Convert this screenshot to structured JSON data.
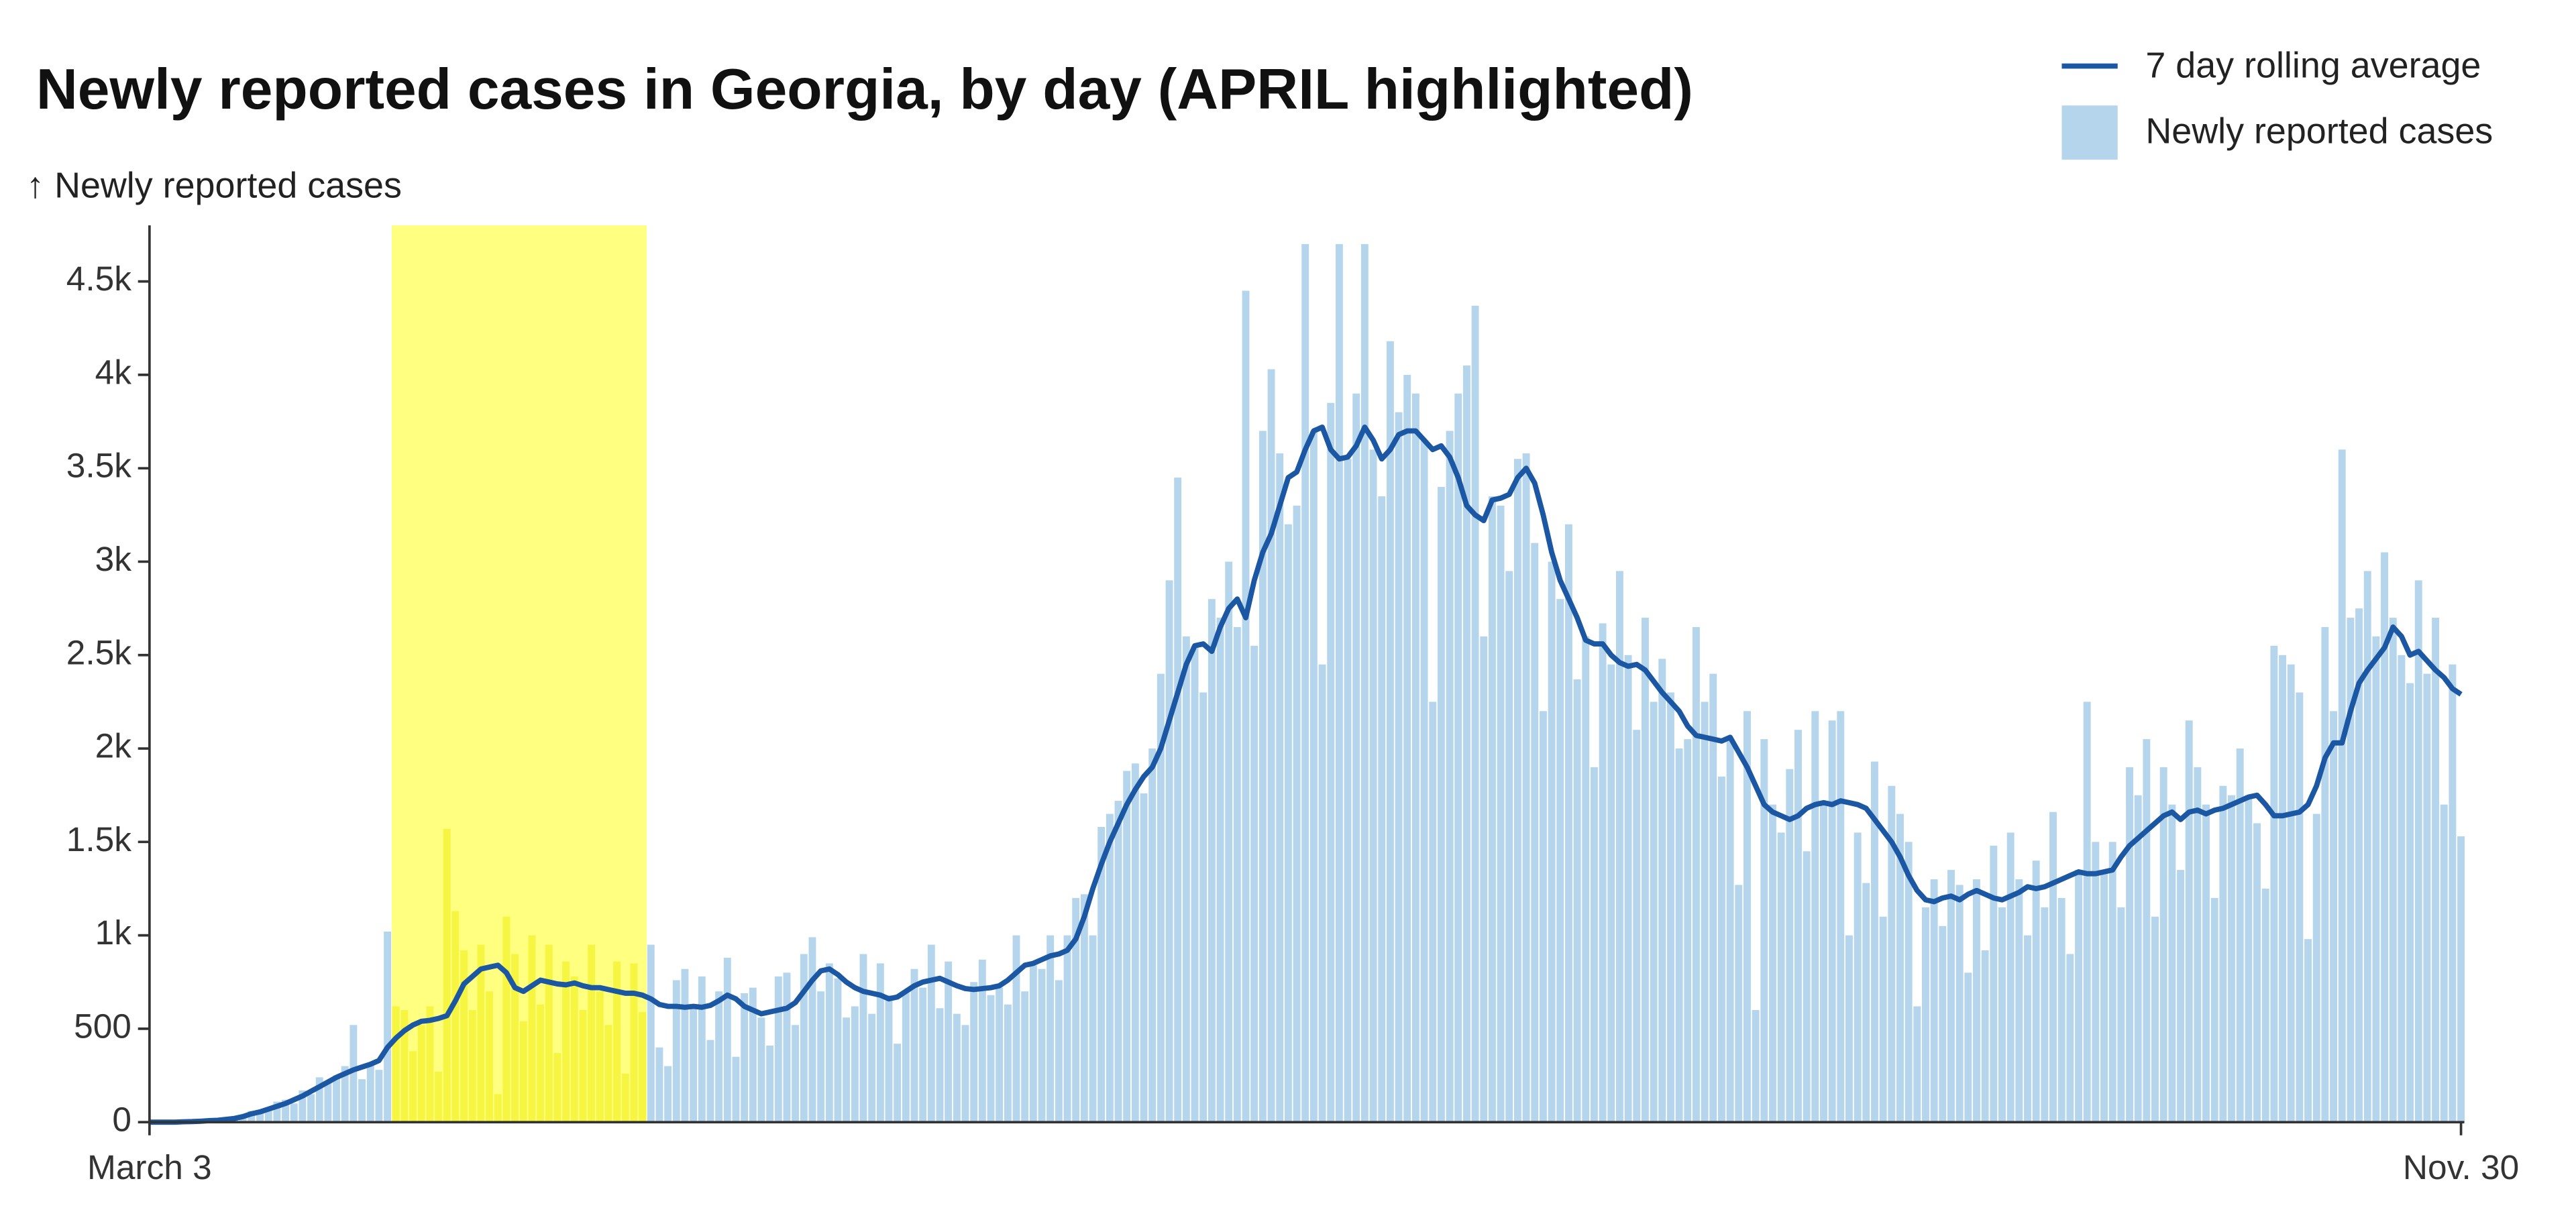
{
  "chart_data": {
    "type": "bar",
    "title": "Newly reported cases in Georgia, by day (APRIL highlighted)",
    "y_label": "↑ Newly reported cases",
    "categories": [
      "March 3",
      null,
      null,
      null,
      null,
      null,
      null,
      null,
      null,
      null,
      null,
      null,
      null,
      null,
      null,
      null,
      null,
      null,
      null,
      null,
      null,
      null,
      null,
      null,
      null,
      null,
      null,
      null,
      null,
      null,
      null,
      null,
      null,
      null,
      null,
      null,
      null,
      null,
      null,
      null,
      null,
      null,
      null,
      null,
      null,
      null,
      null,
      null,
      null,
      null,
      null,
      null,
      null,
      null,
      null,
      null,
      null,
      null,
      null,
      null,
      null,
      null,
      null,
      null,
      null,
      null,
      null,
      null,
      null,
      null,
      null,
      null,
      null,
      null,
      null,
      null,
      null,
      null,
      null,
      null,
      null,
      null,
      null,
      null,
      null,
      null,
      null,
      null,
      null,
      null,
      null,
      null,
      null,
      null,
      null,
      null,
      null,
      null,
      null,
      null,
      null,
      null,
      null,
      null,
      null,
      null,
      null,
      null,
      null,
      null,
      null,
      null,
      null,
      null,
      null,
      null,
      null,
      null,
      null,
      null,
      null,
      null,
      null,
      null,
      null,
      null,
      null,
      null,
      null,
      null,
      null,
      null,
      null,
      null,
      null,
      null,
      null,
      null,
      null,
      null,
      null,
      null,
      null,
      null,
      null,
      null,
      null,
      null,
      null,
      null,
      null,
      null,
      null,
      null,
      null,
      null,
      null,
      null,
      null,
      null,
      null,
      null,
      null,
      null,
      null,
      null,
      null,
      null,
      null,
      null,
      null,
      null,
      null,
      null,
      null,
      null,
      null,
      null,
      null,
      null,
      null,
      null,
      null,
      null,
      null,
      null,
      null,
      null,
      null,
      null,
      null,
      null,
      null,
      null,
      null,
      null,
      null,
      null,
      null,
      null,
      null,
      null,
      null,
      null,
      null,
      null,
      null,
      null,
      null,
      null,
      null,
      null,
      null,
      null,
      null,
      null,
      null,
      null,
      null,
      null,
      null,
      null,
      null,
      null,
      null,
      null,
      null,
      null,
      null,
      null,
      null,
      null,
      null,
      null,
      null,
      null,
      null,
      null,
      null,
      null,
      null,
      null,
      null,
      null,
      null,
      null,
      null,
      null,
      null,
      null,
      null,
      null,
      null,
      null,
      null,
      null,
      null,
      null,
      null,
      null,
      null,
      null,
      null,
      null,
      null,
      null,
      null,
      null,
      null,
      null,
      null,
      null,
      "Nov. 30"
    ],
    "series": [
      {
        "name": "7 day rolling average",
        "type": "line",
        "color": "#1b57a3",
        "values": [
          0,
          0,
          0,
          0,
          2,
          3,
          5,
          8,
          10,
          15,
          20,
          30,
          45,
          55,
          70,
          85,
          100,
          120,
          140,
          165,
          190,
          215,
          240,
          260,
          280,
          295,
          310,
          330,
          400,
          450,
          490,
          520,
          540,
          545,
          555,
          570,
          650,
          740,
          780,
          820,
          830,
          840,
          800,
          720,
          700,
          730,
          760,
          750,
          740,
          735,
          745,
          730,
          720,
          720,
          710,
          700,
          690,
          690,
          680,
          660,
          630,
          620,
          620,
          615,
          620,
          615,
          625,
          650,
          680,
          660,
          620,
          600,
          580,
          590,
          600,
          610,
          640,
          700,
          760,
          810,
          820,
          790,
          750,
          720,
          700,
          690,
          680,
          660,
          670,
          700,
          730,
          750,
          760,
          770,
          750,
          730,
          715,
          710,
          715,
          720,
          730,
          760,
          800,
          840,
          850,
          870,
          890,
          900,
          920,
          980,
          1100,
          1250,
          1380,
          1500,
          1600,
          1700,
          1780,
          1850,
          1900,
          2000,
          2150,
          2300,
          2450,
          2550,
          2560,
          2520,
          2650,
          2750,
          2800,
          2700,
          2900,
          3050,
          3150,
          3300,
          3450,
          3480,
          3600,
          3700,
          3720,
          3600,
          3550,
          3560,
          3620,
          3720,
          3650,
          3550,
          3600,
          3680,
          3700,
          3700,
          3650,
          3600,
          3620,
          3560,
          3450,
          3300,
          3250,
          3220,
          3330,
          3340,
          3360,
          3450,
          3500,
          3420,
          3250,
          3050,
          2900,
          2800,
          2700,
          2580,
          2560,
          2560,
          2500,
          2460,
          2440,
          2450,
          2420,
          2360,
          2300,
          2250,
          2200,
          2120,
          2070,
          2060,
          2050,
          2040,
          2060,
          1980,
          1900,
          1800,
          1700,
          1660,
          1640,
          1620,
          1640,
          1680,
          1700,
          1710,
          1700,
          1720,
          1710,
          1700,
          1680,
          1620,
          1560,
          1500,
          1420,
          1320,
          1240,
          1190,
          1180,
          1200,
          1210,
          1190,
          1220,
          1240,
          1220,
          1200,
          1190,
          1210,
          1230,
          1260,
          1250,
          1260,
          1280,
          1300,
          1320,
          1340,
          1330,
          1330,
          1340,
          1350,
          1420,
          1480,
          1520,
          1560,
          1600,
          1640,
          1660,
          1620,
          1660,
          1670,
          1650,
          1670,
          1680,
          1700,
          1720,
          1740,
          1750,
          1700,
          1640,
          1640,
          1650,
          1660,
          1700,
          1800,
          1950,
          2030,
          2030,
          2200,
          2350,
          2420,
          2480,
          2540,
          2650,
          2600,
          2500,
          2520,
          2470,
          2420,
          2380,
          2320,
          2290
        ]
      },
      {
        "name": "Newly reported cases",
        "type": "bar",
        "color": "#b4d5ec",
        "highlight_color": "#f5f542",
        "values": [
          0,
          0,
          0,
          0,
          5,
          2,
          8,
          10,
          15,
          20,
          30,
          40,
          60,
          50,
          80,
          110,
          120,
          100,
          170,
          150,
          240,
          210,
          250,
          300,
          520,
          230,
          310,
          280,
          1020,
          620,
          600,
          380,
          520,
          620,
          270,
          1570,
          1130,
          920,
          600,
          950,
          700,
          150,
          1100,
          900,
          540,
          1000,
          630,
          950,
          370,
          860,
          780,
          600,
          950,
          700,
          520,
          860,
          260,
          850,
          590,
          950,
          400,
          300,
          760,
          820,
          610,
          780,
          440,
          700,
          880,
          350,
          690,
          720,
          560,
          410,
          780,
          800,
          520,
          900,
          990,
          700,
          850,
          770,
          560,
          620,
          900,
          580,
          850,
          680,
          420,
          700,
          820,
          720,
          950,
          610,
          860,
          580,
          520,
          750,
          870,
          680,
          720,
          630,
          1000,
          700,
          840,
          820,
          1000,
          760,
          1000,
          1200,
          1220,
          1000,
          1580,
          1650,
          1720,
          1880,
          1920,
          1760,
          2000,
          2400,
          2900,
          3450,
          2600,
          2550,
          2300,
          2800,
          2700,
          3000,
          2650,
          4450,
          2550,
          3700,
          4030,
          3580,
          3200,
          3300,
          4700,
          3700,
          2450,
          3850,
          4700,
          3550,
          3900,
          4700,
          3600,
          3350,
          4180,
          3800,
          4000,
          3900,
          3650,
          2250,
          3400,
          3700,
          3900,
          4050,
          4370,
          2600,
          3350,
          3300,
          2950,
          3550,
          3580,
          3100,
          2200,
          3000,
          2800,
          3200,
          2370,
          2600,
          1900,
          2670,
          2450,
          2950,
          2500,
          2100,
          2700,
          2250,
          2480,
          2300,
          2000,
          2050,
          2650,
          2250,
          2400,
          1850,
          2050,
          1270,
          2200,
          600,
          2050,
          1700,
          1550,
          1890,
          2100,
          1450,
          2200,
          1700,
          2150,
          2200,
          1000,
          1550,
          1280,
          1930,
          1100,
          1800,
          1650,
          1500,
          620,
          1150,
          1300,
          1050,
          1350,
          1270,
          800,
          1300,
          920,
          1480,
          1150,
          1550,
          1300,
          1000,
          1400,
          1150,
          1660,
          1200,
          900,
          1350,
          2250,
          1500,
          1350,
          1500,
          1150,
          1900,
          1750,
          2050,
          1100,
          1900,
          1700,
          1350,
          2150,
          1900,
          1700,
          1200,
          1800,
          1750,
          2000,
          1750,
          1600,
          1250,
          2550,
          2500,
          2450,
          2300,
          980,
          1650,
          2650,
          2200,
          3600,
          2700,
          2750,
          2950,
          2600,
          3050,
          2700,
          2500,
          2350,
          2900,
          2400,
          2700,
          1700,
          2450,
          1530
        ]
      }
    ],
    "highlight_range": [
      29,
      58
    ],
    "highlight_color": "#ffff80",
    "ylim": [
      0,
      4800
    ],
    "yticks": [
      0,
      500,
      {
        "value": 1000,
        "label": "1k"
      },
      {
        "value": 1500,
        "label": "1.5k"
      },
      {
        "value": 2000,
        "label": "2k"
      },
      {
        "value": 2500,
        "label": "2.5k"
      },
      {
        "value": 3000,
        "label": "3k"
      },
      {
        "value": 3500,
        "label": "3.5k"
      },
      {
        "value": 4000,
        "label": "4k"
      },
      {
        "value": 4500,
        "label": "4.5k"
      }
    ],
    "grid": false,
    "legend": "top-right"
  }
}
